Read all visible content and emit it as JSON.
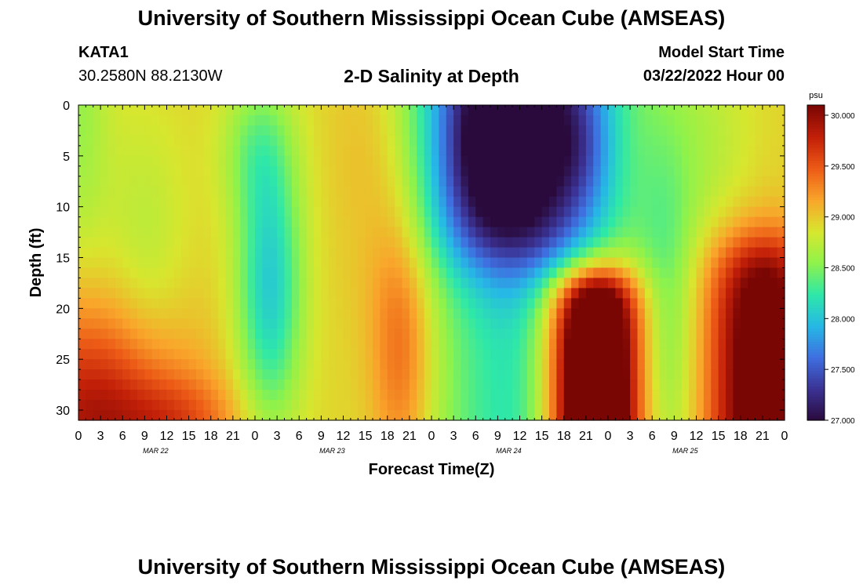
{
  "header": {
    "title": "University of Southern Mississippi Ocean Cube (AMSEAS)",
    "station_id": "KATA1",
    "coordinates": "30.2580N  88.2130W",
    "model_start_label": "Model Start Time",
    "model_start_value": "03/22/2022 Hour 00"
  },
  "footer": {
    "title": "University of Southern Mississippi Ocean Cube (AMSEAS)"
  },
  "chart_data": {
    "type": "heatmap",
    "title": "2-D Salinity at Depth",
    "xlabel": "Forecast Time(Z)",
    "ylabel": "Depth (ft)",
    "x_range_hours": [
      0,
      96
    ],
    "x_tick_step_hours": 3,
    "x_tick_labels": [
      "0",
      "3",
      "6",
      "9",
      "12",
      "15",
      "18",
      "21",
      "0",
      "3",
      "6",
      "9",
      "12",
      "15",
      "18",
      "21",
      "0",
      "3",
      "6",
      "9",
      "12",
      "15",
      "18",
      "21",
      "0",
      "3",
      "6",
      "9",
      "12",
      "15",
      "18",
      "21",
      "0"
    ],
    "date_labels": [
      {
        "text": "MAR 22",
        "hour": 10.5
      },
      {
        "text": "MAR 23",
        "hour": 34.5
      },
      {
        "text": "MAR 24",
        "hour": 58.5
      },
      {
        "text": "MAR 25",
        "hour": 82.5
      }
    ],
    "y_range_ft": [
      0,
      31
    ],
    "y_ticks": [
      0,
      5,
      10,
      15,
      20,
      25,
      30
    ],
    "y_tick_labels": [
      "0",
      "5",
      "10",
      "15",
      "20",
      "25",
      "30"
    ],
    "colorbar": {
      "unit": "psu",
      "range": [
        27.0,
        30.1
      ],
      "ticks": [
        27.0,
        27.5,
        28.0,
        28.5,
        29.0,
        29.5,
        30.0
      ],
      "tick_labels": [
        "27.000",
        "27.500",
        "28.000",
        "28.500",
        "29.000",
        "29.500",
        "30.000"
      ],
      "colors": [
        "#2a0a3c",
        "#3b3294",
        "#3e6fe0",
        "#26b8e6",
        "#2ee8a8",
        "#8ff24a",
        "#d8e62e",
        "#f9a52b",
        "#ec5a16",
        "#c21f08",
        "#7a0604"
      ]
    },
    "grid_resolution": {
      "hours_step": 1,
      "depth_step_ft": 1
    },
    "features": [
      {
        "desc": "fresh low-salinity core",
        "hour": 55,
        "depth_ft": 4,
        "salinity_psu": 27.0
      },
      {
        "desc": "secondary low core",
        "hour": 68,
        "depth_ft": 4,
        "salinity_psu": 27.2
      },
      {
        "desc": "mid-water minimum",
        "hour": 26,
        "depth_ft": 20,
        "salinity_psu": 28.05
      },
      {
        "desc": "deep high-salinity pool",
        "hour": 70,
        "depth_ft": 26,
        "salinity_psu": 30.1
      },
      {
        "desc": "deep high-salinity pool late",
        "hour": 93,
        "depth_ft": 25,
        "salinity_psu": 30.1
      },
      {
        "desc": "bottom saline layer early",
        "hour": 2,
        "depth_ft": 30,
        "salinity_psu": 29.9
      }
    ]
  }
}
